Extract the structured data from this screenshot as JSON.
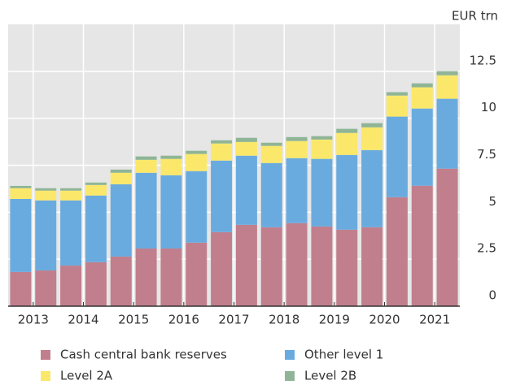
{
  "chart_data": {
    "type": "stacked_bar",
    "unit_label": "EUR trn",
    "categories": [
      null,
      "2013",
      null,
      "2014",
      null,
      "2015",
      null,
      "2016",
      null,
      "2017",
      null,
      "2018",
      null,
      "2019",
      null,
      "2020",
      null,
      "2021"
    ],
    "series": [
      {
        "name": "Cash central bank reserves",
        "color": "#c17f8d",
        "values": [
          1.82,
          1.9,
          2.16,
          2.34,
          2.64,
          3.07,
          3.07,
          3.38,
          3.94,
          4.33,
          4.2,
          4.42,
          4.24,
          4.07,
          4.2,
          5.8,
          6.41,
          7.32
        ]
      },
      {
        "name": "Other level 1",
        "color": "#6aabdf",
        "values": [
          3.89,
          3.73,
          3.47,
          3.55,
          3.85,
          4.03,
          3.9,
          3.81,
          3.81,
          3.68,
          3.42,
          3.46,
          3.6,
          3.98,
          4.11,
          4.29,
          4.11,
          3.72
        ]
      },
      {
        "name": "Level 2A",
        "color": "#fbe86a",
        "values": [
          0.57,
          0.52,
          0.52,
          0.56,
          0.61,
          0.69,
          0.87,
          0.91,
          0.91,
          0.73,
          0.91,
          0.91,
          1.03,
          1.17,
          1.21,
          1.12,
          1.13,
          1.25
        ]
      },
      {
        "name": "Level 2B",
        "color": "#8fb596",
        "values": [
          0.12,
          0.13,
          0.13,
          0.13,
          0.17,
          0.18,
          0.17,
          0.17,
          0.17,
          0.22,
          0.17,
          0.21,
          0.18,
          0.22,
          0.22,
          0.18,
          0.21,
          0.22
        ]
      }
    ],
    "ylim": [
      0,
      15
    ],
    "yticks": [
      0,
      2.5,
      5,
      7.5,
      10,
      12.5
    ],
    "grid": true
  }
}
